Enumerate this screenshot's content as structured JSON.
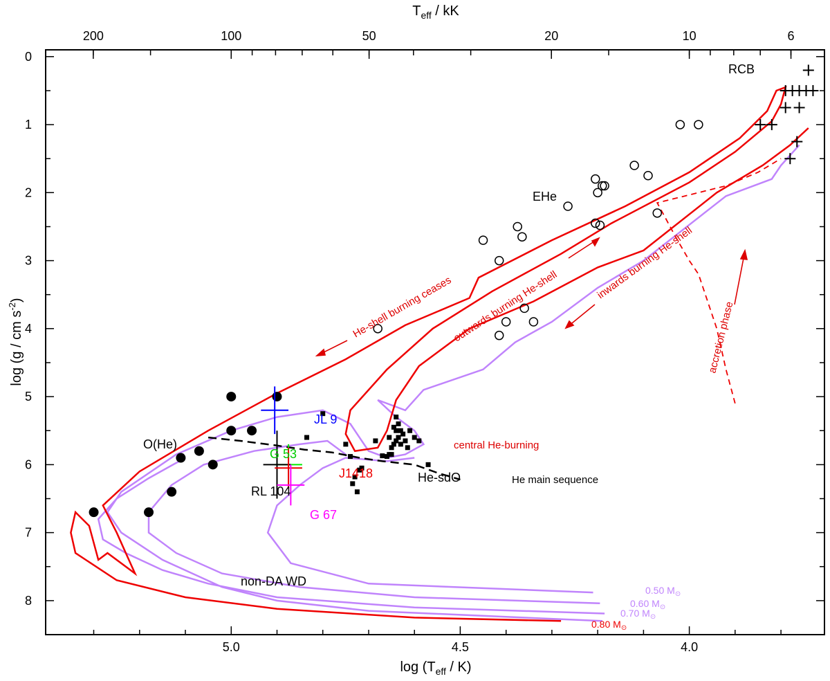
{
  "chart_data": {
    "type": "scatter",
    "title": "",
    "xlabel": "log (T_eff / K)",
    "ylabel": "log (g / cm s^-2)",
    "top_xlabel": "T_eff / kK",
    "xlim": [
      5.405,
      3.705
    ],
    "ylim": [
      8.5,
      -0.1
    ],
    "x_ticks": [
      {
        "value": 5.0,
        "label": "5.0"
      },
      {
        "value": 4.5,
        "label": "4.5"
      },
      {
        "value": 4.0,
        "label": "4.0"
      }
    ],
    "y_ticks": [
      {
        "value": 0,
        "label": "0"
      },
      {
        "value": 1,
        "label": "1"
      },
      {
        "value": 2,
        "label": "2"
      },
      {
        "value": 3,
        "label": "3"
      },
      {
        "value": 4,
        "label": "4"
      },
      {
        "value": 5,
        "label": "5"
      },
      {
        "value": 6,
        "label": "6"
      },
      {
        "value": 7,
        "label": "7"
      },
      {
        "value": 8,
        "label": "8"
      }
    ],
    "top_ticks": [
      {
        "teff_kK": 200,
        "label": "200"
      },
      {
        "teff_kK": 100,
        "label": "100"
      },
      {
        "teff_kK": 50,
        "label": "50"
      },
      {
        "teff_kK": 20,
        "label": "20"
      },
      {
        "teff_kK": 10,
        "label": "10"
      },
      {
        "teff_kK": 6,
        "label": "6"
      }
    ],
    "groups": [
      {
        "name": "O(He)",
        "marker": "filled-circle",
        "color": "#000000",
        "points": [
          [
            5.3,
            6.7
          ],
          [
            5.18,
            6.7
          ],
          [
            5.13,
            6.4
          ],
          [
            5.11,
            5.9
          ],
          [
            5.07,
            5.8
          ],
          [
            5.04,
            6.0
          ],
          [
            5.0,
            5.0
          ],
          [
            5.0,
            5.5
          ],
          [
            4.955,
            5.5
          ],
          [
            4.9,
            5.0
          ]
        ]
      },
      {
        "name": "EHe",
        "marker": "open-circle",
        "color": "#000000",
        "points": [
          [
            4.02,
            1.0
          ],
          [
            3.98,
            1.0
          ],
          [
            4.12,
            1.6
          ],
          [
            4.09,
            1.75
          ],
          [
            4.19,
            1.9
          ],
          [
            4.185,
            1.9
          ],
          [
            4.205,
            1.8
          ],
          [
            4.2,
            2.0
          ],
          [
            4.265,
            2.2
          ],
          [
            4.07,
            2.3
          ],
          [
            4.375,
            2.5
          ],
          [
            4.365,
            2.65
          ],
          [
            4.45,
            2.7
          ],
          [
            4.415,
            3.0
          ],
          [
            4.205,
            2.45
          ],
          [
            4.195,
            2.48
          ],
          [
            4.36,
            3.7
          ],
          [
            4.4,
            3.9
          ],
          [
            4.34,
            3.9
          ],
          [
            4.415,
            4.1
          ],
          [
            4.68,
            4.0
          ]
        ]
      },
      {
        "name": "RCB",
        "marker": "plus",
        "color": "#000000",
        "points": [
          [
            3.74,
            0.2
          ],
          [
            3.73,
            0.5
          ],
          [
            3.745,
            0.5
          ],
          [
            3.76,
            0.5
          ],
          [
            3.775,
            0.5
          ],
          [
            3.79,
            0.5
          ],
          [
            3.79,
            0.75
          ],
          [
            3.76,
            0.75
          ],
          [
            3.82,
            1.0
          ],
          [
            3.845,
            1.0
          ],
          [
            3.765,
            1.25
          ],
          [
            3.78,
            1.5
          ]
        ]
      },
      {
        "name": "He-sdO",
        "marker": "filled-square",
        "color": "#000000",
        "points": [
          [
            4.8,
            5.25
          ],
          [
            4.835,
            5.6
          ],
          [
            4.75,
            5.7
          ],
          [
            4.74,
            5.88
          ],
          [
            4.72,
            6.08
          ],
          [
            4.715,
            6.05
          ],
          [
            4.73,
            6.18
          ],
          [
            4.735,
            6.28
          ],
          [
            4.725,
            6.4
          ],
          [
            4.685,
            5.65
          ],
          [
            4.66,
            5.88
          ],
          [
            4.67,
            5.87
          ],
          [
            4.65,
            5.85
          ],
          [
            4.655,
            5.85
          ],
          [
            4.64,
            5.3
          ],
          [
            4.635,
            5.4
          ],
          [
            4.64,
            5.5
          ],
          [
            4.645,
            5.45
          ],
          [
            4.63,
            5.5
          ],
          [
            4.625,
            5.55
          ],
          [
            4.635,
            5.6
          ],
          [
            4.62,
            5.65
          ],
          [
            4.64,
            5.65
          ],
          [
            4.645,
            5.7
          ],
          [
            4.655,
            5.6
          ],
          [
            4.63,
            5.7
          ],
          [
            4.61,
            5.5
          ],
          [
            4.615,
            5.75
          ],
          [
            4.6,
            5.6
          ],
          [
            4.59,
            5.65
          ],
          [
            4.57,
            6.0
          ],
          [
            4.65,
            5.75
          ]
        ]
      }
    ],
    "error_crosses": [
      {
        "name": "JL 9",
        "color": "#0000ff",
        "x": 4.905,
        "y": 5.2,
        "x_range": [
          4.935,
          4.875
        ],
        "y_range": [
          4.85,
          5.55
        ]
      },
      {
        "name": "G 53",
        "color": "#00ee00",
        "x": 4.875,
        "y": 6.0,
        "x_range": [
          4.905,
          4.845
        ],
        "y_range": [
          5.7,
          6.3
        ]
      },
      {
        "name": "RL 104",
        "color": "#000000",
        "x": 4.9,
        "y": 6.0,
        "x_range": [
          4.93,
          4.87
        ],
        "y_range": [
          5.5,
          6.5
        ]
      },
      {
        "name": "J1418",
        "color": "#ee0000",
        "x": 4.875,
        "y": 6.05,
        "x_range": [
          4.905,
          4.845
        ],
        "y_range": [
          5.75,
          6.35
        ]
      },
      {
        "name": "G 67",
        "color": "#ff00ff",
        "x": 4.87,
        "y": 6.3,
        "x_range": [
          4.9,
          4.84
        ],
        "y_range": [
          6.0,
          6.6
        ]
      }
    ],
    "he_main_sequence": [
      [
        5.05,
        5.6
      ],
      [
        4.98,
        5.65
      ],
      [
        4.9,
        5.72
      ],
      [
        4.84,
        5.78
      ],
      [
        4.78,
        5.82
      ],
      [
        4.72,
        5.9
      ],
      [
        4.67,
        5.95
      ],
      [
        4.6,
        6.0
      ],
      [
        4.55,
        6.12
      ],
      [
        4.5,
        6.22
      ]
    ],
    "labels": {
      "RCB": "RCB",
      "EHe": "EHe",
      "OHe": "O(He)",
      "HesdO": "He-sdO",
      "nonDA": "non-DA WD",
      "heMS": "He main sequence",
      "centralHe": "central He-burning",
      "shellCeases": "He-shell burning ceases",
      "outwards": "outwards burning He-shell",
      "inwards": "inwards burning He-shell",
      "accretion": "accretion phase",
      "JL9": "JL 9",
      "G53": "G 53",
      "RL104": "RL 104",
      "J1418": "J1418",
      "G67": "G 67",
      "m050": "0.50 M",
      "m060": "0.60 M",
      "m070": "0.70 M",
      "m080": "0.80 M"
    },
    "colors": {
      "red_track": "#ee0000",
      "purple_track": "#c084fc",
      "annotation_red": "#dd0000"
    }
  }
}
